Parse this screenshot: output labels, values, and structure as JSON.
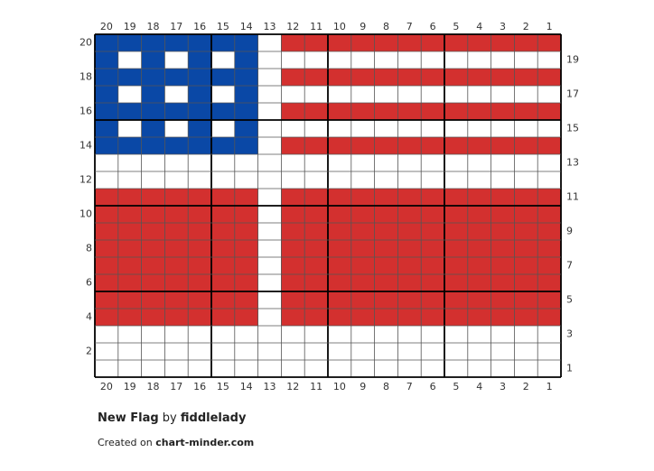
{
  "colors": {
    "white": "#ffffff",
    "blue": "#0a48a6",
    "red": "#d3302f",
    "gridline": "#555555",
    "majorline": "#000000"
  },
  "chart_data": {
    "type": "grid",
    "columns": 20,
    "rows": 20,
    "column_labels": [
      "20",
      "19",
      "18",
      "17",
      "16",
      "15",
      "14",
      "13",
      "12",
      "11",
      "10",
      "9",
      "8",
      "7",
      "6",
      "5",
      "4",
      "3",
      "2",
      "1"
    ],
    "left_row_labels": [
      "20",
      "18",
      "16",
      "14",
      "12",
      "10",
      "8",
      "6",
      "4",
      "2"
    ],
    "right_row_labels": [
      "19",
      "17",
      "15",
      "13",
      "11",
      "9",
      "7",
      "5",
      "3",
      "1"
    ],
    "legend": {
      "W": "white",
      "B": "blue",
      "R": "red"
    },
    "grid": [
      "BBBBBBBWRRRRRRRRRRRR",
      "BWBWBWBWWWWWWWWWWWWW",
      "BBBBBBBWRRRRRRRRRRRR",
      "BWBWBWBWWWWWWWWWWWWW",
      "BBBBBBBWRRRRRRRRRRRR",
      "BWBWBWBWWWWWWWWWWWWW",
      "BBBBBBBWRRRRRRRRRRRR",
      "WWWWWWWWWWWWWWWWWWWW",
      "WWWWWWWWWWWWWWWWWWWW",
      "RRRRRRRWRRRRRRRRRRRR",
      "RRRRRRRWRRRRRRRRRRRR",
      "RRRRRRRWRRRRRRRRRRRR",
      "RRRRRRRWRRRRRRRRRRRR",
      "RRRRRRRWRRRRRRRRRRRR",
      "RRRRRRRWRRRRRRRRRRRR",
      "RRRRRRRWRRRRRRRRRRRR",
      "RRRRRRRWRRRRRRRRRRRR",
      "WWWWWWWWWWWWWWWWWWWW",
      "WWWWWWWWWWWWWWWWWWWW",
      "WWWWWWWWWWWWWWWWWWWW"
    ]
  },
  "footer": {
    "title": "New Flag",
    "by": "by",
    "author": "fiddlelady",
    "created_prefix": "Created on",
    "site": "chart-minder.com"
  }
}
